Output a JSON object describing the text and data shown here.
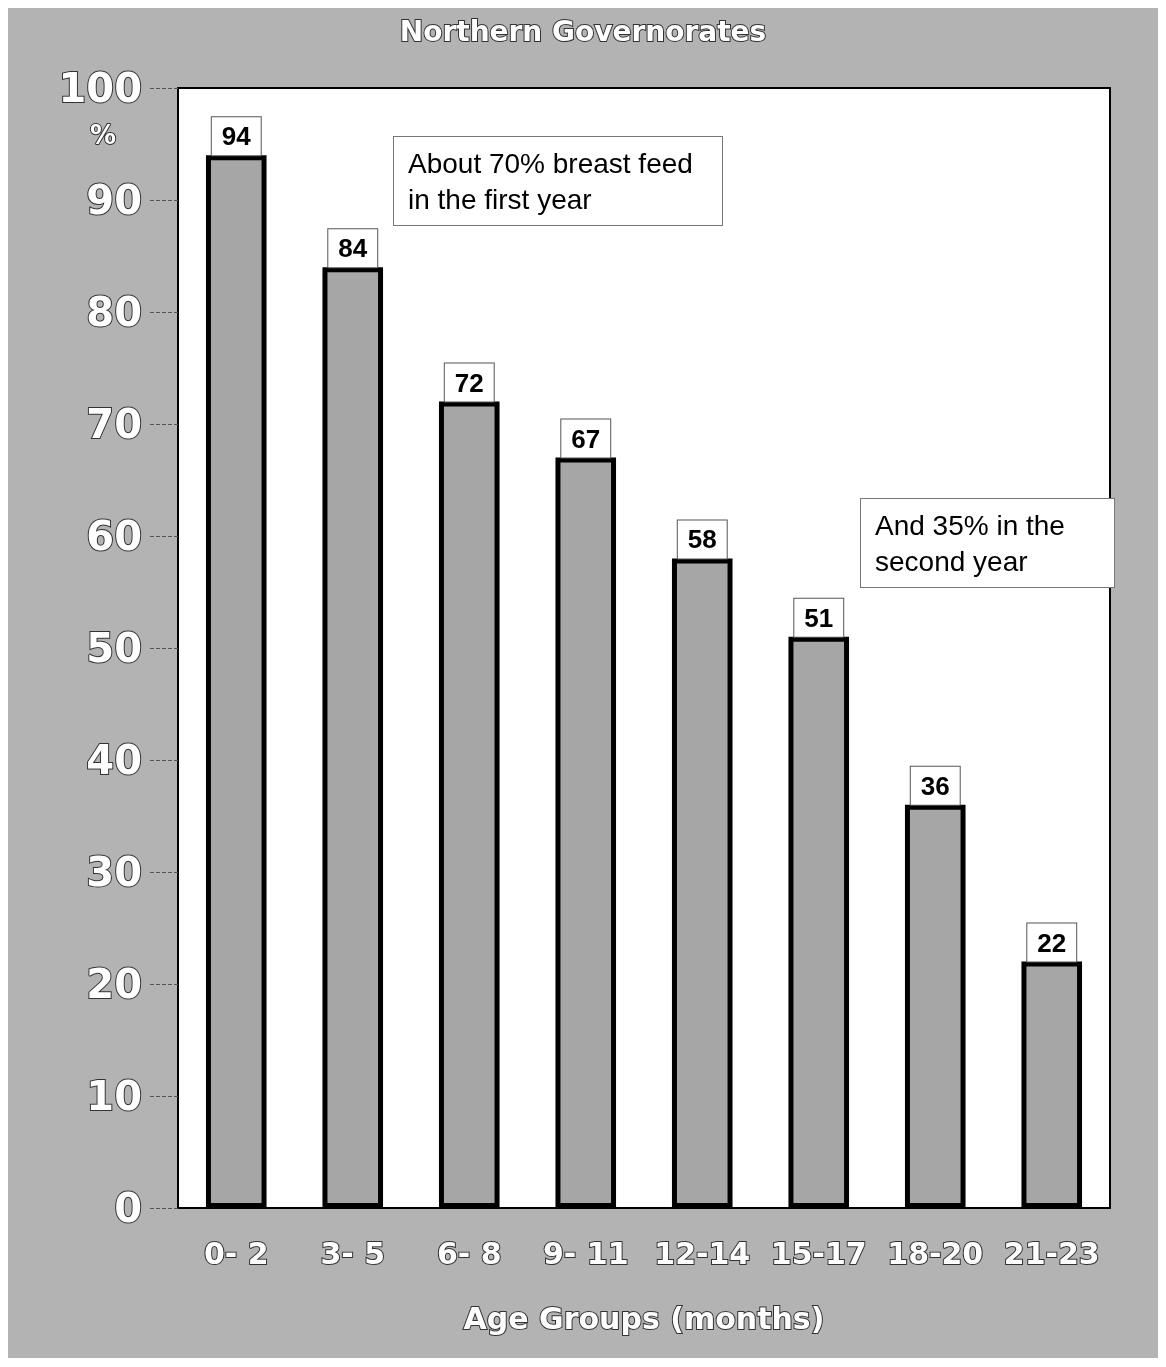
{
  "chart_data": {
    "type": "bar",
    "title": "Northern Governorates",
    "xlabel": "Age Groups (months)",
    "ylabel": "%",
    "categories": [
      "0- 2",
      "3- 5",
      "6- 8",
      "9- 11",
      "12-14",
      "15-17",
      "18-20",
      "21-23"
    ],
    "values": [
      94,
      84,
      72,
      67,
      58,
      51,
      36,
      22
    ],
    "color": "#a6a6a6",
    "ylim": [
      0,
      100
    ],
    "yticks": [
      0,
      10,
      20,
      30,
      40,
      50,
      60,
      70,
      80,
      90,
      100
    ],
    "grid": false,
    "data_labels": true,
    "annotations": [
      "About 70% breast feed in the first year",
      "And 35% in the second year"
    ]
  }
}
